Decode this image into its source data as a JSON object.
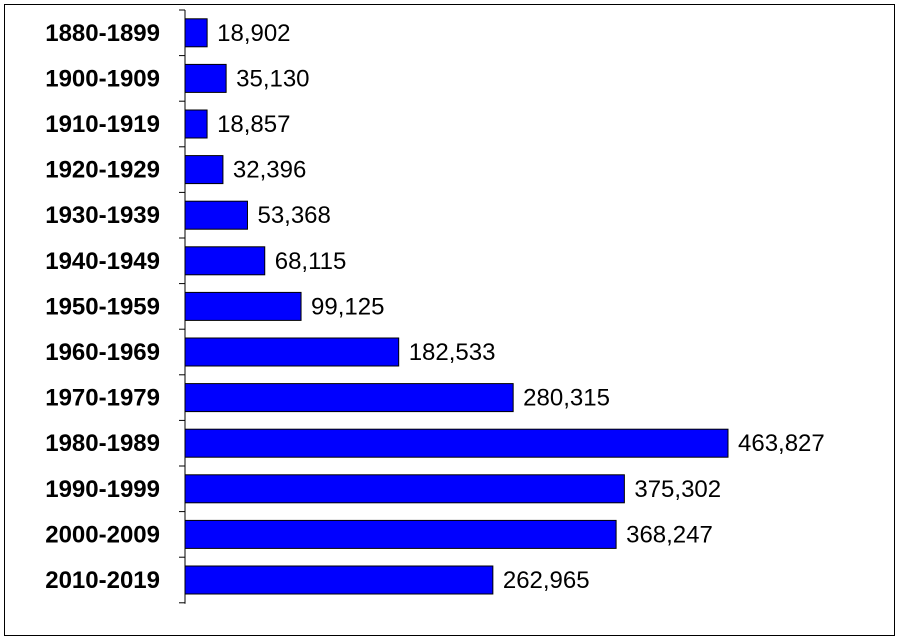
{
  "chart_data": {
    "type": "bar",
    "orientation": "horizontal",
    "categories": [
      "1880-1899",
      "1900-1909",
      "1910-1919",
      "1920-1929",
      "1930-1939",
      "1940-1949",
      "1950-1959",
      "1960-1969",
      "1970-1979",
      "1980-1989",
      "1990-1999",
      "2000-2009",
      "2010-2019"
    ],
    "values": [
      18902,
      35130,
      18857,
      32396,
      53368,
      68115,
      99125,
      182533,
      280315,
      463827,
      375302,
      368247,
      262965
    ],
    "value_labels": [
      "18,902",
      "35,130",
      "18,857",
      "32,396",
      "53,368",
      "68,115",
      "99,125",
      "182,533",
      "280,315",
      "463,827",
      "375,302",
      "368,247",
      "262,965"
    ],
    "title": "",
    "xlabel": "",
    "ylabel": "",
    "xlim": [
      0,
      463827
    ],
    "grid": false,
    "legend": "none",
    "bar_color": "#0000ff",
    "bar_edge_color": "#000000"
  }
}
